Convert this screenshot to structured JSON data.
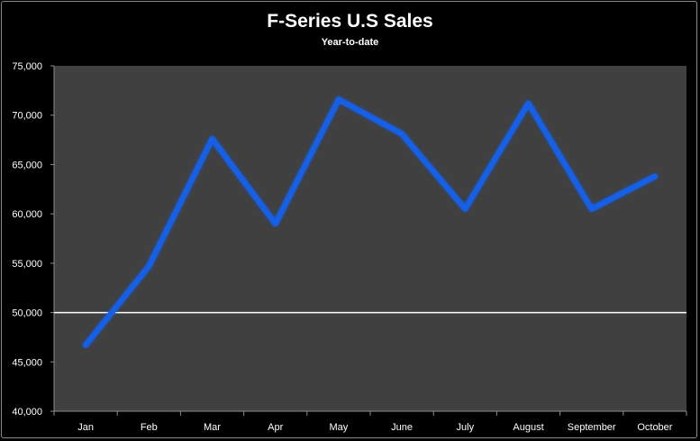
{
  "chart_data": {
    "type": "line",
    "title": "F-Series U.S Sales",
    "subtitle": "Year-to-date",
    "xlabel": "",
    "ylabel": "",
    "categories": [
      "Jan",
      "Feb",
      "Mar",
      "Apr",
      "May",
      "June",
      "July",
      "August",
      "September",
      "October"
    ],
    "series": [
      {
        "values": [
          46700,
          54700,
          67600,
          59000,
          71600,
          68100,
          60500,
          71200,
          60500,
          63800
        ]
      }
    ],
    "ylim": [
      40000,
      75000
    ],
    "yticks": [
      "40,000",
      "45,000",
      "50,000",
      "55,000",
      "60,000",
      "65,000",
      "70,000",
      "75,000"
    ],
    "reference_line": 50000,
    "grid": false,
    "legend": "none",
    "colors": {
      "background": "#000000",
      "plot_area": "#404040",
      "line": "#1560e8",
      "reference_line": "#ffffff",
      "text": "#ffffff"
    }
  }
}
